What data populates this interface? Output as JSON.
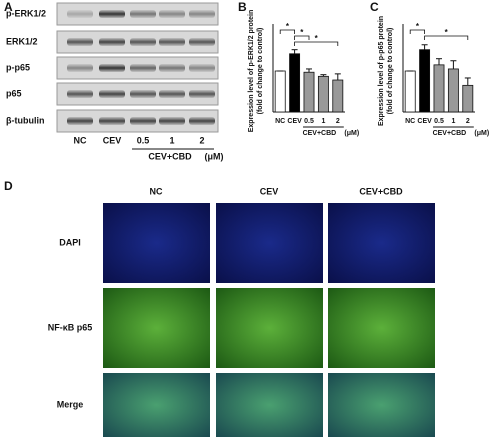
{
  "panels": [
    "A",
    "B",
    "C",
    "D"
  ],
  "blot": {
    "rows": [
      "p-ERK1/2",
      "ERK1/2",
      "p-p65",
      "p65",
      "β-tubulin"
    ],
    "lanes": [
      "NC",
      "CEV",
      "0.5",
      "1",
      "2"
    ],
    "group": "CEV+CBD",
    "unit": "(μM)"
  },
  "chart_data": [
    {
      "type": "bar",
      "y_label": "Expression level of p-ERK1/2 protein\n(fold of change to control)",
      "categories": [
        "NC",
        "CEV",
        "0.5",
        "1",
        "2"
      ],
      "group": "CEV+CBD",
      "unit": "(μM)",
      "values": [
        1.0,
        1.42,
        0.97,
        0.87,
        0.78
      ],
      "errors": [
        0,
        0.1,
        0.08,
        0.04,
        0.15
      ],
      "colors": [
        "#ffffff",
        "#000000",
        "#999999",
        "#999999",
        "#999999"
      ],
      "ylim": [
        0,
        2
      ],
      "annotations": [
        "*",
        "*",
        "*"
      ]
    },
    {
      "type": "bar",
      "y_label": "Expression level of p-p65 protein\n(fold of change to control)",
      "categories": [
        "NC",
        "CEV",
        "0.5",
        "1",
        "2"
      ],
      "group": "CEV+CBD",
      "unit": "(μM)",
      "values": [
        1.0,
        1.52,
        1.15,
        1.05,
        0.65
      ],
      "errors": [
        0,
        0.12,
        0.15,
        0.2,
        0.18
      ],
      "colors": [
        "#ffffff",
        "#000000",
        "#999999",
        "#999999",
        "#999999"
      ],
      "ylim": [
        0,
        2
      ],
      "annotations": [
        "*",
        "*"
      ]
    }
  ],
  "microscopy": {
    "columns": [
      "NC",
      "CEV",
      "CEV+CBD"
    ],
    "rows": [
      "DAPI",
      "NF-κB p65",
      "Merge"
    ]
  }
}
